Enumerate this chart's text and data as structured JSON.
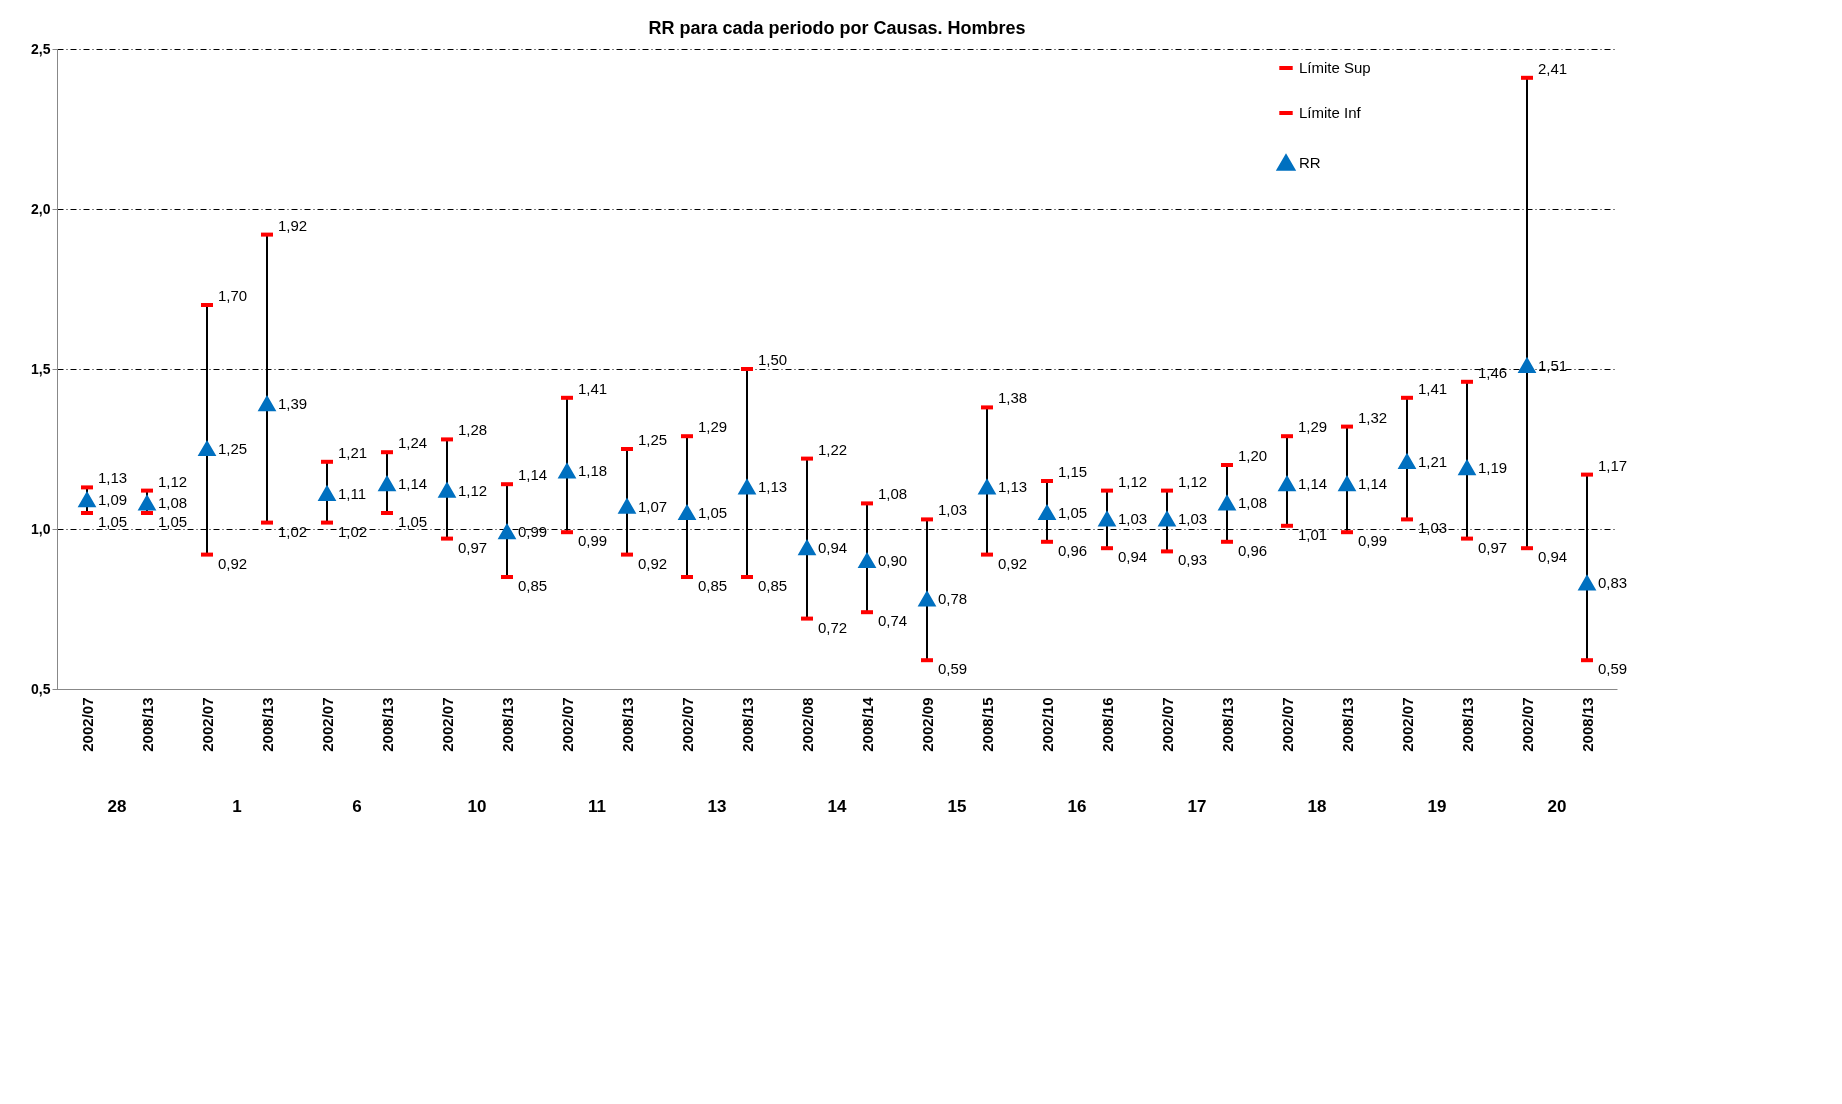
{
  "chart_data": {
    "type": "scatter",
    "title": "RR para cada periodo por Causas. Hombres",
    "categories": [
      "2002/07",
      "2008/13",
      "2002/07",
      "2008/13",
      "2002/07",
      "2008/13",
      "2002/07",
      "2008/13",
      "2002/07",
      "2008/13",
      "2002/07",
      "2008/13",
      "2002/08",
      "2008/14",
      "2002/09",
      "2008/15",
      "2002/10",
      "2008/16",
      "2002/07",
      "2008/13",
      "2002/07",
      "2008/13",
      "2002/07",
      "2008/13",
      "2002/07",
      "2008/13"
    ],
    "annotations": [
      "28",
      "1",
      "6",
      "10",
      "11",
      "13",
      "14",
      "15",
      "16",
      "17",
      "18",
      "19",
      "20"
    ],
    "series": [
      {
        "name": "Límite Sup",
        "color": "#ff0000",
        "values": [
          1.13,
          1.12,
          1.7,
          1.92,
          1.21,
          1.24,
          1.28,
          1.14,
          1.41,
          1.25,
          1.29,
          1.5,
          1.22,
          1.08,
          1.03,
          1.38,
          1.15,
          1.12,
          1.12,
          1.2,
          1.29,
          1.32,
          1.41,
          1.46,
          2.41,
          1.17
        ],
        "value_labels": [
          "1,13",
          "1,12",
          "1,70",
          "1,92",
          "1,21",
          "1,24",
          "1,28",
          "1,14",
          "1,41",
          "1,25",
          "1,29",
          "1,50",
          "1,22",
          "1,08",
          "1,03",
          "1,38",
          "1,15",
          "1,12",
          "1,12",
          "1,20",
          "1,29",
          "1,32",
          "1,41",
          "1,46",
          "2,41",
          "1,17"
        ]
      },
      {
        "name": "Límite Inf",
        "color": "#ff0000",
        "values": [
          1.05,
          1.05,
          0.92,
          1.02,
          1.02,
          1.05,
          0.97,
          0.85,
          0.99,
          0.92,
          0.85,
          0.85,
          0.72,
          0.74,
          0.59,
          0.92,
          0.96,
          0.94,
          0.93,
          0.96,
          1.01,
          0.99,
          1.03,
          0.97,
          0.94,
          0.59
        ],
        "value_labels": [
          "1,05",
          "1,05",
          "0,92",
          "1,02",
          "1,02",
          "1,05",
          "0,97",
          "0,85",
          "0,99",
          "0,92",
          "0,85",
          "0,85",
          "0,72",
          "0,74",
          "0,59",
          "0,92",
          "0,96",
          "0,94",
          "0,93",
          "0,96",
          "1,01",
          "0,99",
          "1,03",
          "0,97",
          "0,94",
          "0,59"
        ]
      },
      {
        "name": "RR",
        "color": "#0070c0",
        "marker": "triangle",
        "values": [
          1.09,
          1.08,
          1.25,
          1.39,
          1.11,
          1.14,
          1.12,
          0.99,
          1.18,
          1.07,
          1.05,
          1.13,
          0.94,
          0.9,
          0.78,
          1.13,
          1.05,
          1.03,
          1.03,
          1.08,
          1.14,
          1.14,
          1.21,
          1.19,
          1.51,
          0.83
        ],
        "value_labels": [
          "1,09",
          "1,08",
          "1,25",
          "1,39",
          "1,11",
          "1,14",
          "1,12",
          "0,99",
          "1,18",
          "1,07",
          "1,05",
          "1,13",
          "0,94",
          "0,90",
          "0,78",
          "1,13",
          "1,05",
          "1,03",
          "1,03",
          "1,08",
          "1,14",
          "1,14",
          "1,21",
          "1,19",
          "1,51",
          "0,83"
        ]
      }
    ],
    "ylim": [
      0.5,
      2.5
    ],
    "yticks": [
      {
        "value": 0.5,
        "label": "0,5"
      },
      {
        "value": 1.0,
        "label": "1,0"
      },
      {
        "value": 1.5,
        "label": "1,5"
      },
      {
        "value": 2.0,
        "label": "2,0"
      },
      {
        "value": 2.5,
        "label": "2,5"
      }
    ],
    "grid": "y",
    "legend": "top right"
  }
}
